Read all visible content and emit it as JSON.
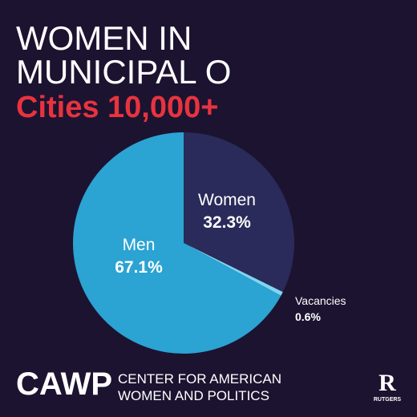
{
  "chart_data": {
    "type": "pie",
    "title": [
      "WOMEN IN",
      "MUNICIPAL O"
    ],
    "subtitle": "Cities 10,000+",
    "categories": [
      "Women",
      "Vacancies",
      "Men"
    ],
    "values": [
      32.3,
      0.6,
      67.1
    ],
    "value_labels": [
      "32.3%",
      "0.6%",
      "67.1%"
    ],
    "colors": [
      "#2a2b5a",
      "#7fd6f2",
      "#2ba3d3"
    ]
  },
  "footer": {
    "logo": "CAWP",
    "org": [
      "CENTER FOR AMERICAN",
      "WOMEN AND POLITICS"
    ],
    "badge": "R",
    "badge_text": "RUTGERS"
  }
}
